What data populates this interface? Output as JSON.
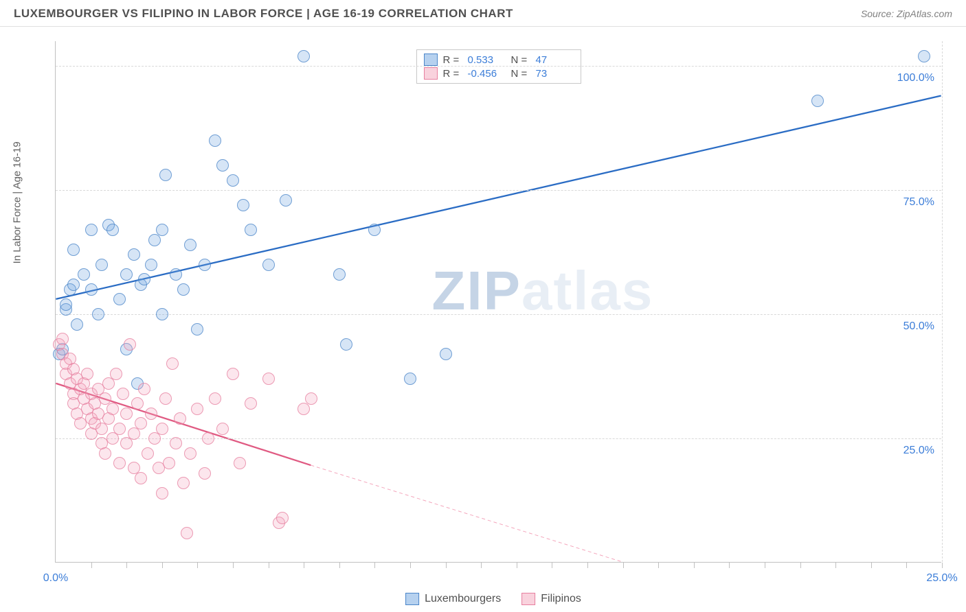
{
  "header": {
    "title": "LUXEMBOURGER VS FILIPINO IN LABOR FORCE | AGE 16-19 CORRELATION CHART",
    "source_prefix": "Source: ",
    "source_name": "ZipAtlas.com"
  },
  "watermark": {
    "part1": "ZIP",
    "part2": "atlas"
  },
  "chart": {
    "type": "scatter",
    "background_color": "#ffffff",
    "grid_color": "#d8d8d8",
    "axis_color": "#c0c0c0",
    "tick_label_color": "#3b7dd8",
    "tick_label_fontsize": 16,
    "ylabel": "In Labor Force | Age 16-19",
    "ylabel_fontsize": 15,
    "ylabel_color": "#606060",
    "xlim": [
      0,
      25
    ],
    "ylim": [
      0,
      105
    ],
    "yticks": [
      25,
      50,
      75,
      100
    ],
    "ytick_labels": [
      "25.0%",
      "50.0%",
      "75.0%",
      "100.0%"
    ],
    "xticks_minor": [
      1,
      2,
      3,
      4,
      5,
      6,
      7,
      8,
      9,
      10,
      11,
      12,
      13,
      14,
      15,
      16,
      17,
      18,
      19,
      20,
      21,
      22,
      23,
      24,
      25
    ],
    "xticks_labels": [
      {
        "pos": 0,
        "label": "0.0%"
      },
      {
        "pos": 25,
        "label": "25.0%"
      }
    ],
    "point_radius": 9,
    "point_border_width": 1.2,
    "point_fill_opacity": 0.35,
    "series": [
      {
        "name": "Luxembourgers",
        "color": "#6ea3e0",
        "border_color": "#4a85c9",
        "r_label": "R =",
        "r_value": "0.533",
        "n_label": "N =",
        "n_value": "47",
        "trend": {
          "x1": 0,
          "y1": 53,
          "x2": 25,
          "y2": 94,
          "color": "#2a6cc4",
          "width": 2.3,
          "dash": "none"
        },
        "points": [
          [
            0.1,
            42
          ],
          [
            0.2,
            43
          ],
          [
            0.3,
            51
          ],
          [
            0.3,
            52
          ],
          [
            0.4,
            55
          ],
          [
            0.5,
            56
          ],
          [
            0.5,
            63
          ],
          [
            0.6,
            48
          ],
          [
            0.8,
            58
          ],
          [
            1.0,
            55
          ],
          [
            1.0,
            67
          ],
          [
            1.2,
            50
          ],
          [
            1.3,
            60
          ],
          [
            1.5,
            68
          ],
          [
            1.6,
            67
          ],
          [
            1.8,
            53
          ],
          [
            2.0,
            58
          ],
          [
            2.0,
            43
          ],
          [
            2.2,
            62
          ],
          [
            2.3,
            36
          ],
          [
            2.4,
            56
          ],
          [
            2.5,
            57
          ],
          [
            2.7,
            60
          ],
          [
            2.8,
            65
          ],
          [
            3.0,
            50
          ],
          [
            3.0,
            67
          ],
          [
            3.1,
            78
          ],
          [
            3.4,
            58
          ],
          [
            3.6,
            55
          ],
          [
            3.8,
            64
          ],
          [
            4.0,
            47
          ],
          [
            4.2,
            60
          ],
          [
            4.5,
            85
          ],
          [
            4.7,
            80
          ],
          [
            5.0,
            77
          ],
          [
            5.3,
            72
          ],
          [
            5.5,
            67
          ],
          [
            6.0,
            60
          ],
          [
            6.5,
            73
          ],
          [
            7.0,
            102
          ],
          [
            8.0,
            58
          ],
          [
            8.2,
            44
          ],
          [
            9.0,
            67
          ],
          [
            10.0,
            37
          ],
          [
            11.0,
            42
          ],
          [
            21.5,
            93
          ],
          [
            24.5,
            102
          ]
        ]
      },
      {
        "name": "Filipinos",
        "color": "#f4a6bc",
        "border_color": "#e77f9f",
        "r_label": "R =",
        "r_value": "-0.456",
        "n_label": "N =",
        "n_value": "73",
        "trend": {
          "x1": 0,
          "y1": 36,
          "x2": 16,
          "y2": 0,
          "color": "#e05a82",
          "width": 2.3,
          "dash": "none"
        },
        "trend_ext": {
          "x1": 7.2,
          "y1": 19.5,
          "x2": 16,
          "y2": 0,
          "color": "#f4a6bc",
          "width": 1,
          "dash": "5,4"
        },
        "points": [
          [
            0.1,
            44
          ],
          [
            0.2,
            45
          ],
          [
            0.2,
            42
          ],
          [
            0.3,
            40
          ],
          [
            0.3,
            38
          ],
          [
            0.4,
            41
          ],
          [
            0.4,
            36
          ],
          [
            0.5,
            39
          ],
          [
            0.5,
            34
          ],
          [
            0.5,
            32
          ],
          [
            0.6,
            37
          ],
          [
            0.6,
            30
          ],
          [
            0.7,
            35
          ],
          [
            0.7,
            28
          ],
          [
            0.8,
            36
          ],
          [
            0.8,
            33
          ],
          [
            0.9,
            38
          ],
          [
            0.9,
            31
          ],
          [
            1.0,
            34
          ],
          [
            1.0,
            29
          ],
          [
            1.0,
            26
          ],
          [
            1.1,
            32
          ],
          [
            1.1,
            28
          ],
          [
            1.2,
            35
          ],
          [
            1.2,
            30
          ],
          [
            1.3,
            27
          ],
          [
            1.3,
            24
          ],
          [
            1.4,
            33
          ],
          [
            1.4,
            22
          ],
          [
            1.5,
            36
          ],
          [
            1.5,
            29
          ],
          [
            1.6,
            31
          ],
          [
            1.6,
            25
          ],
          [
            1.7,
            38
          ],
          [
            1.8,
            27
          ],
          [
            1.8,
            20
          ],
          [
            1.9,
            34
          ],
          [
            2.0,
            30
          ],
          [
            2.0,
            24
          ],
          [
            2.1,
            44
          ],
          [
            2.2,
            26
          ],
          [
            2.2,
            19
          ],
          [
            2.3,
            32
          ],
          [
            2.4,
            28
          ],
          [
            2.4,
            17
          ],
          [
            2.5,
            35
          ],
          [
            2.6,
            22
          ],
          [
            2.7,
            30
          ],
          [
            2.8,
            25
          ],
          [
            2.9,
            19
          ],
          [
            3.0,
            27
          ],
          [
            3.0,
            14
          ],
          [
            3.1,
            33
          ],
          [
            3.2,
            20
          ],
          [
            3.3,
            40
          ],
          [
            3.4,
            24
          ],
          [
            3.5,
            29
          ],
          [
            3.6,
            16
          ],
          [
            3.7,
            6
          ],
          [
            3.8,
            22
          ],
          [
            4.0,
            31
          ],
          [
            4.2,
            18
          ],
          [
            4.3,
            25
          ],
          [
            4.5,
            33
          ],
          [
            4.7,
            27
          ],
          [
            5.0,
            38
          ],
          [
            5.2,
            20
          ],
          [
            5.5,
            32
          ],
          [
            6.0,
            37
          ],
          [
            6.3,
            8
          ],
          [
            6.4,
            9
          ],
          [
            7.0,
            31
          ],
          [
            7.2,
            33
          ]
        ]
      }
    ]
  }
}
